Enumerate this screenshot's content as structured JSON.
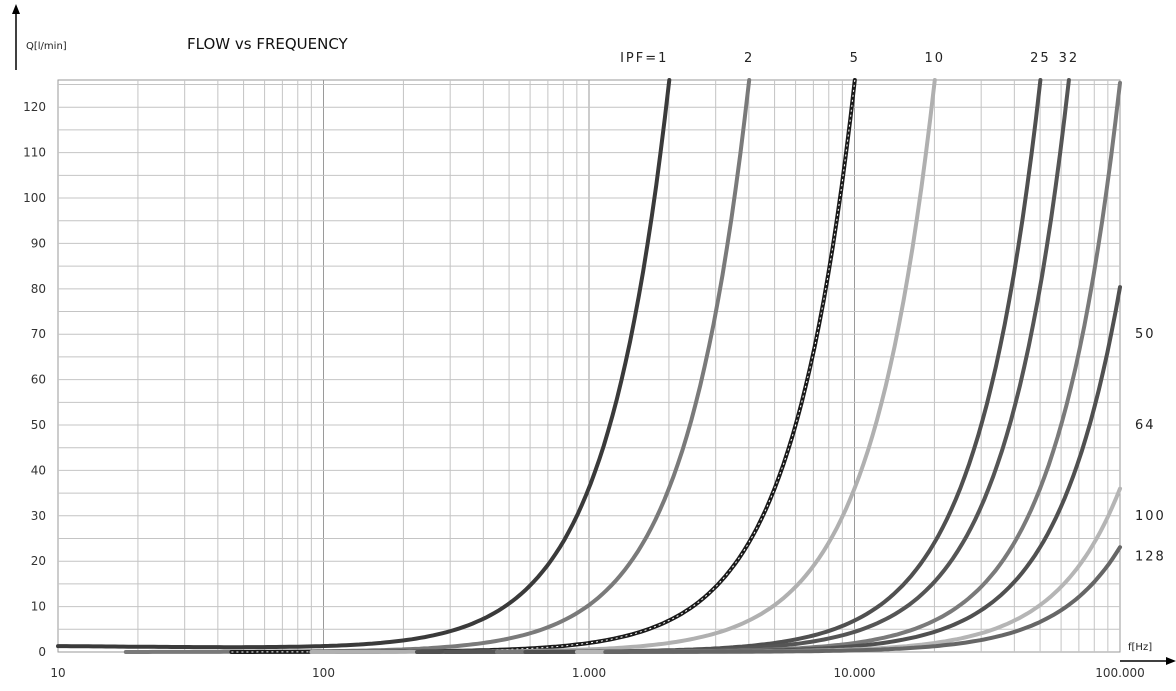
{
  "chart_data": {
    "type": "line",
    "title": "FLOW vs FREQUENCY",
    "ylabel": "Q[l/min]",
    "xlabel": "f[Hz]",
    "x_scale": "log",
    "xlim": [
      10,
      100000
    ],
    "ylim": [
      0,
      126
    ],
    "x_ticks": [
      10,
      100,
      1000,
      10000,
      100000
    ],
    "x_tick_labels": [
      "10",
      "100",
      "1.000",
      "10.000",
      "100.000"
    ],
    "y_ticks": [
      0,
      10,
      20,
      30,
      40,
      50,
      60,
      70,
      80,
      90,
      100,
      110,
      120
    ],
    "grid": true,
    "legend": "labels at curve ends",
    "series": [
      {
        "name": "IPF=1",
        "label": "IPF=1",
        "k": 1,
        "color": "#3a3a3a",
        "x": [
          10,
          100,
          1000,
          2000,
          3600
        ],
        "y": [
          1.3,
          5,
          36,
          75,
          126
        ]
      },
      {
        "name": "2",
        "label": "2",
        "k": 2,
        "color": "#7a7a7a",
        "x": [
          15,
          200,
          2000,
          4000,
          7300
        ],
        "y": [
          0.5,
          3,
          35,
          75,
          126
        ]
      },
      {
        "name": "5",
        "label": "5",
        "k": 5,
        "color": "#1a1a1a",
        "x": [
          35,
          500,
          5000,
          10000,
          18500
        ],
        "y": [
          0.3,
          3,
          35,
          75,
          126
        ]
      },
      {
        "name": "10",
        "label": "10",
        "k": 10,
        "color": "#b0b0b0",
        "x": [
          70,
          1000,
          10000,
          20000,
          36500
        ],
        "y": [
          0.3,
          3,
          35,
          75,
          126
        ]
      },
      {
        "name": "25",
        "label": "25",
        "k": 25,
        "color": "#505050",
        "x": [
          180,
          2500,
          25000,
          50000,
          92000
        ],
        "y": [
          0.3,
          3,
          35,
          75,
          126
        ]
      },
      {
        "name": "32",
        "label": "32",
        "k": 32,
        "color": "#555555",
        "x": [
          230,
          3200,
          32000,
          64000,
          100000
        ],
        "y": [
          0.3,
          3,
          35,
          75,
          109
        ]
      },
      {
        "name": "50",
        "label": "50",
        "k": 50,
        "color": "#7a7a7a",
        "x": [
          360,
          5000,
          50000,
          100000
        ],
        "y": [
          0.3,
          3,
          35,
          69
        ]
      },
      {
        "name": "64",
        "label": "64",
        "k": 64,
        "color": "#505050",
        "x": [
          460,
          6400,
          64000,
          100000
        ],
        "y": [
          0.3,
          3,
          35,
          54
        ]
      },
      {
        "name": "100",
        "label": "100",
        "k": 100,
        "color": "#b5b5b5",
        "x": [
          720,
          10000,
          50000,
          100000
        ],
        "y": [
          0.3,
          3,
          17,
          34
        ]
      },
      {
        "name": "128",
        "label": "128",
        "k": 128,
        "color": "#666666",
        "x": [
          920,
          12800,
          64000,
          100000
        ],
        "y": [
          0.3,
          3,
          17,
          27
        ]
      }
    ]
  }
}
